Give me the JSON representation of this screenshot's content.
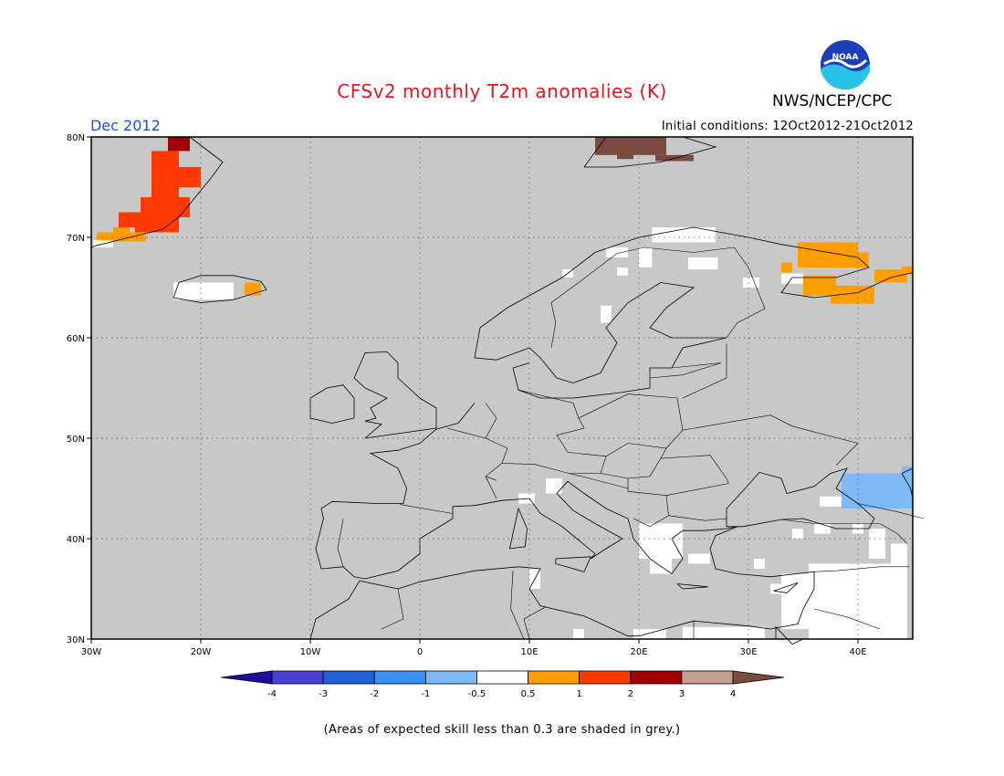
{
  "header": {
    "title": "CFSv2 monthly T2m anomalies (K)",
    "month": "Dec 2012",
    "org": "NWS/NCEP/CPC",
    "initial_conditions": "Initial conditions: 12Oct2012-21Oct2012",
    "logo_text": "NOAA"
  },
  "footnote": "(Areas of expected skill less than 0.3 are shaded in grey.)",
  "map": {
    "lon_range": [
      -30,
      45
    ],
    "lat_range": [
      30,
      80
    ],
    "lon_ticks": [
      {
        "value": -30,
        "label": "30W"
      },
      {
        "value": -20,
        "label": "20W"
      },
      {
        "value": -10,
        "label": "10W"
      },
      {
        "value": 0,
        "label": "0"
      },
      {
        "value": 10,
        "label": "10E"
      },
      {
        "value": 20,
        "label": "20E"
      },
      {
        "value": 30,
        "label": "30E"
      },
      {
        "value": 40,
        "label": "40E"
      }
    ],
    "lat_ticks": [
      {
        "value": 30,
        "label": "30N"
      },
      {
        "value": 40,
        "label": "40N"
      },
      {
        "value": 50,
        "label": "50N"
      },
      {
        "value": 60,
        "label": "60N"
      },
      {
        "value": 70,
        "label": "70N"
      },
      {
        "value": 80,
        "label": "80N"
      }
    ],
    "background_color": "#c8c8c8"
  },
  "colorbar": {
    "labels": [
      "-4",
      "-3",
      "-2",
      "-1",
      "-0.5",
      "0.5",
      "1",
      "2",
      "3",
      "4"
    ],
    "colors": [
      "#1e0ca0",
      "#4a3fd4",
      "#1f62d8",
      "#3b8ff0",
      "#7fb9f6",
      "#ffffff",
      "#ff9e00",
      "#ff3a00",
      "#a00000",
      "#c49e90",
      "#7a4a3e"
    ]
  }
}
